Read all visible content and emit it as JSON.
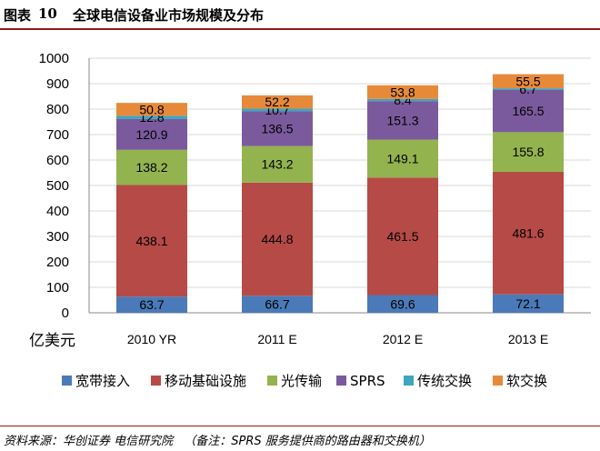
{
  "header": {
    "label": "图表",
    "number": "10",
    "title": "全球电信设备业市场规模及分布"
  },
  "chart_data": {
    "type": "bar",
    "stacked": true,
    "categories": [
      "2010 YR",
      "2011 E",
      "2012 E",
      "2013 E"
    ],
    "ylabel": "亿美元",
    "ylim": [
      0,
      1000
    ],
    "yticks": [
      0,
      100,
      200,
      300,
      400,
      500,
      600,
      700,
      800,
      900,
      1000
    ],
    "grid": true,
    "legend_position": "bottom",
    "series": [
      {
        "name": "宽带接入",
        "color": "#4a7ab8",
        "values": [
          63.7,
          66.7,
          69.6,
          72.1
        ]
      },
      {
        "name": "移动基础设施",
        "color": "#b64a47",
        "values": [
          438.1,
          444.8,
          461.5,
          481.6
        ]
      },
      {
        "name": "光传输",
        "color": "#93b34f",
        "values": [
          138.2,
          143.2,
          149.1,
          155.8
        ]
      },
      {
        "name": "SPRS",
        "color": "#7a5a9c",
        "values": [
          120.9,
          136.5,
          151.3,
          165.5
        ]
      },
      {
        "name": "传统交换",
        "color": "#3fa5c2",
        "values": [
          12.8,
          10.7,
          8.4,
          6.7
        ]
      },
      {
        "name": "软交换",
        "color": "#e68a3a",
        "values": [
          50.8,
          52.2,
          53.8,
          55.5
        ]
      }
    ]
  },
  "footer": {
    "source": "资料来源：华创证券  电信研究院",
    "note": "（备注：SPRS 服务提供商的路由器和交换机）"
  }
}
